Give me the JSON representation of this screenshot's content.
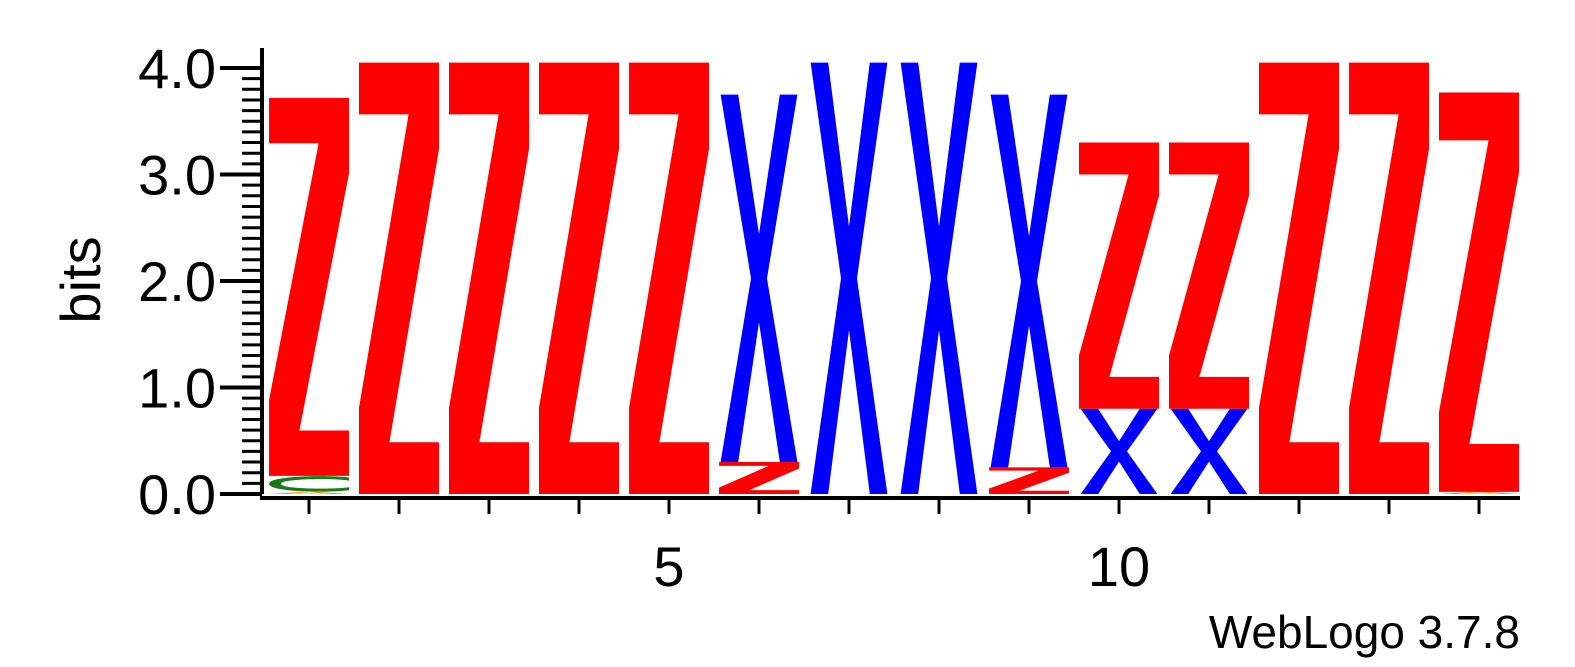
{
  "chart_data": {
    "type": "sequence-logo",
    "ylabel": "bits",
    "ylim": [
      0,
      4.0
    ],
    "y_ticks": [
      "0.0",
      "1.0",
      "2.0",
      "3.0",
      "4.0"
    ],
    "x_tick_labels": [
      {
        "position": 5,
        "label": "5"
      },
      {
        "position": 10,
        "label": "10"
      }
    ],
    "positions": [
      {
        "pos": 1,
        "stack": [
          {
            "letter": "A",
            "bits": 0.02,
            "color": "#ff8c00"
          },
          {
            "letter": "C",
            "bits": 0.15,
            "color": "#1a7a1a"
          },
          {
            "letter": "Z",
            "bits": 3.55,
            "color": "#ff0000"
          }
        ]
      },
      {
        "pos": 2,
        "stack": [
          {
            "letter": "Z",
            "bits": 4.05,
            "color": "#ff0000"
          }
        ]
      },
      {
        "pos": 3,
        "stack": [
          {
            "letter": "Z",
            "bits": 4.05,
            "color": "#ff0000"
          }
        ]
      },
      {
        "pos": 4,
        "stack": [
          {
            "letter": "Z",
            "bits": 4.05,
            "color": "#ff0000"
          }
        ]
      },
      {
        "pos": 5,
        "stack": [
          {
            "letter": "Z",
            "bits": 4.05,
            "color": "#ff0000"
          }
        ]
      },
      {
        "pos": 6,
        "stack": [
          {
            "letter": "Z",
            "bits": 0.3,
            "color": "#ff0000"
          },
          {
            "letter": "X",
            "bits": 3.45,
            "color": "#0000ff"
          }
        ]
      },
      {
        "pos": 7,
        "stack": [
          {
            "letter": "X",
            "bits": 4.05,
            "color": "#0000ff"
          }
        ]
      },
      {
        "pos": 8,
        "stack": [
          {
            "letter": "X",
            "bits": 4.05,
            "color": "#0000ff"
          }
        ]
      },
      {
        "pos": 9,
        "stack": [
          {
            "letter": "Z",
            "bits": 0.25,
            "color": "#ff0000"
          },
          {
            "letter": "X",
            "bits": 3.5,
            "color": "#0000ff"
          }
        ]
      },
      {
        "pos": 10,
        "stack": [
          {
            "letter": "X",
            "bits": 0.8,
            "color": "#0000ff"
          },
          {
            "letter": "Z",
            "bits": 2.5,
            "color": "#ff0000"
          }
        ]
      },
      {
        "pos": 11,
        "stack": [
          {
            "letter": "X",
            "bits": 0.8,
            "color": "#0000ff"
          },
          {
            "letter": "Z",
            "bits": 2.5,
            "color": "#ff0000"
          }
        ]
      },
      {
        "pos": 12,
        "stack": [
          {
            "letter": "Z",
            "bits": 4.05,
            "color": "#ff0000"
          }
        ]
      },
      {
        "pos": 13,
        "stack": [
          {
            "letter": "Z",
            "bits": 4.05,
            "color": "#ff0000"
          }
        ]
      },
      {
        "pos": 14,
        "stack": [
          {
            "letter": "A",
            "bits": 0.02,
            "color": "#ff8c00"
          },
          {
            "letter": "Z",
            "bits": 3.75,
            "color": "#ff0000"
          }
        ]
      }
    ]
  },
  "credit": "WebLogo 3.7.8"
}
